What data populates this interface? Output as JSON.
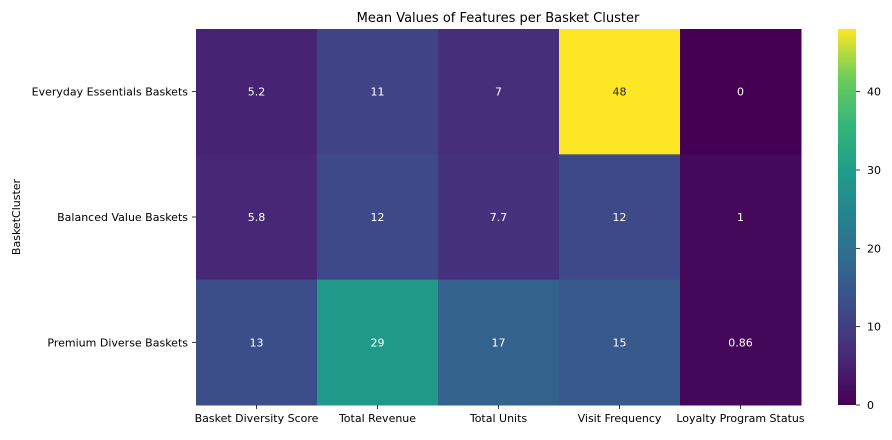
{
  "chart_data": {
    "type": "heatmap",
    "title": "Mean Values of Features per Basket Cluster",
    "xlabel": "",
    "ylabel": "BasketCluster",
    "x_categories": [
      "Basket Diversity Score",
      "Total Revenue",
      "Total Units",
      "Visit Frequency",
      "Loyalty Program Status"
    ],
    "y_categories": [
      "Everyday Essentials Baskets",
      "Balanced Value Baskets",
      "Premium Diverse Baskets"
    ],
    "values": [
      [
        5.2,
        11,
        7,
        48,
        0
      ],
      [
        5.8,
        12,
        7.7,
        12,
        1
      ],
      [
        13,
        29,
        17,
        15,
        0.86
      ]
    ],
    "annotations": [
      [
        "5.2",
        "11",
        "7",
        "48",
        "0"
      ],
      [
        "5.8",
        "12",
        "7.7",
        "12",
        "1"
      ],
      [
        "13",
        "29",
        "17",
        "15",
        "0.86"
      ]
    ],
    "colormap": "viridis",
    "colorbar": {
      "vmin": 0,
      "vmax": 48,
      "ticks": [
        0,
        10,
        20,
        30,
        40
      ]
    }
  }
}
